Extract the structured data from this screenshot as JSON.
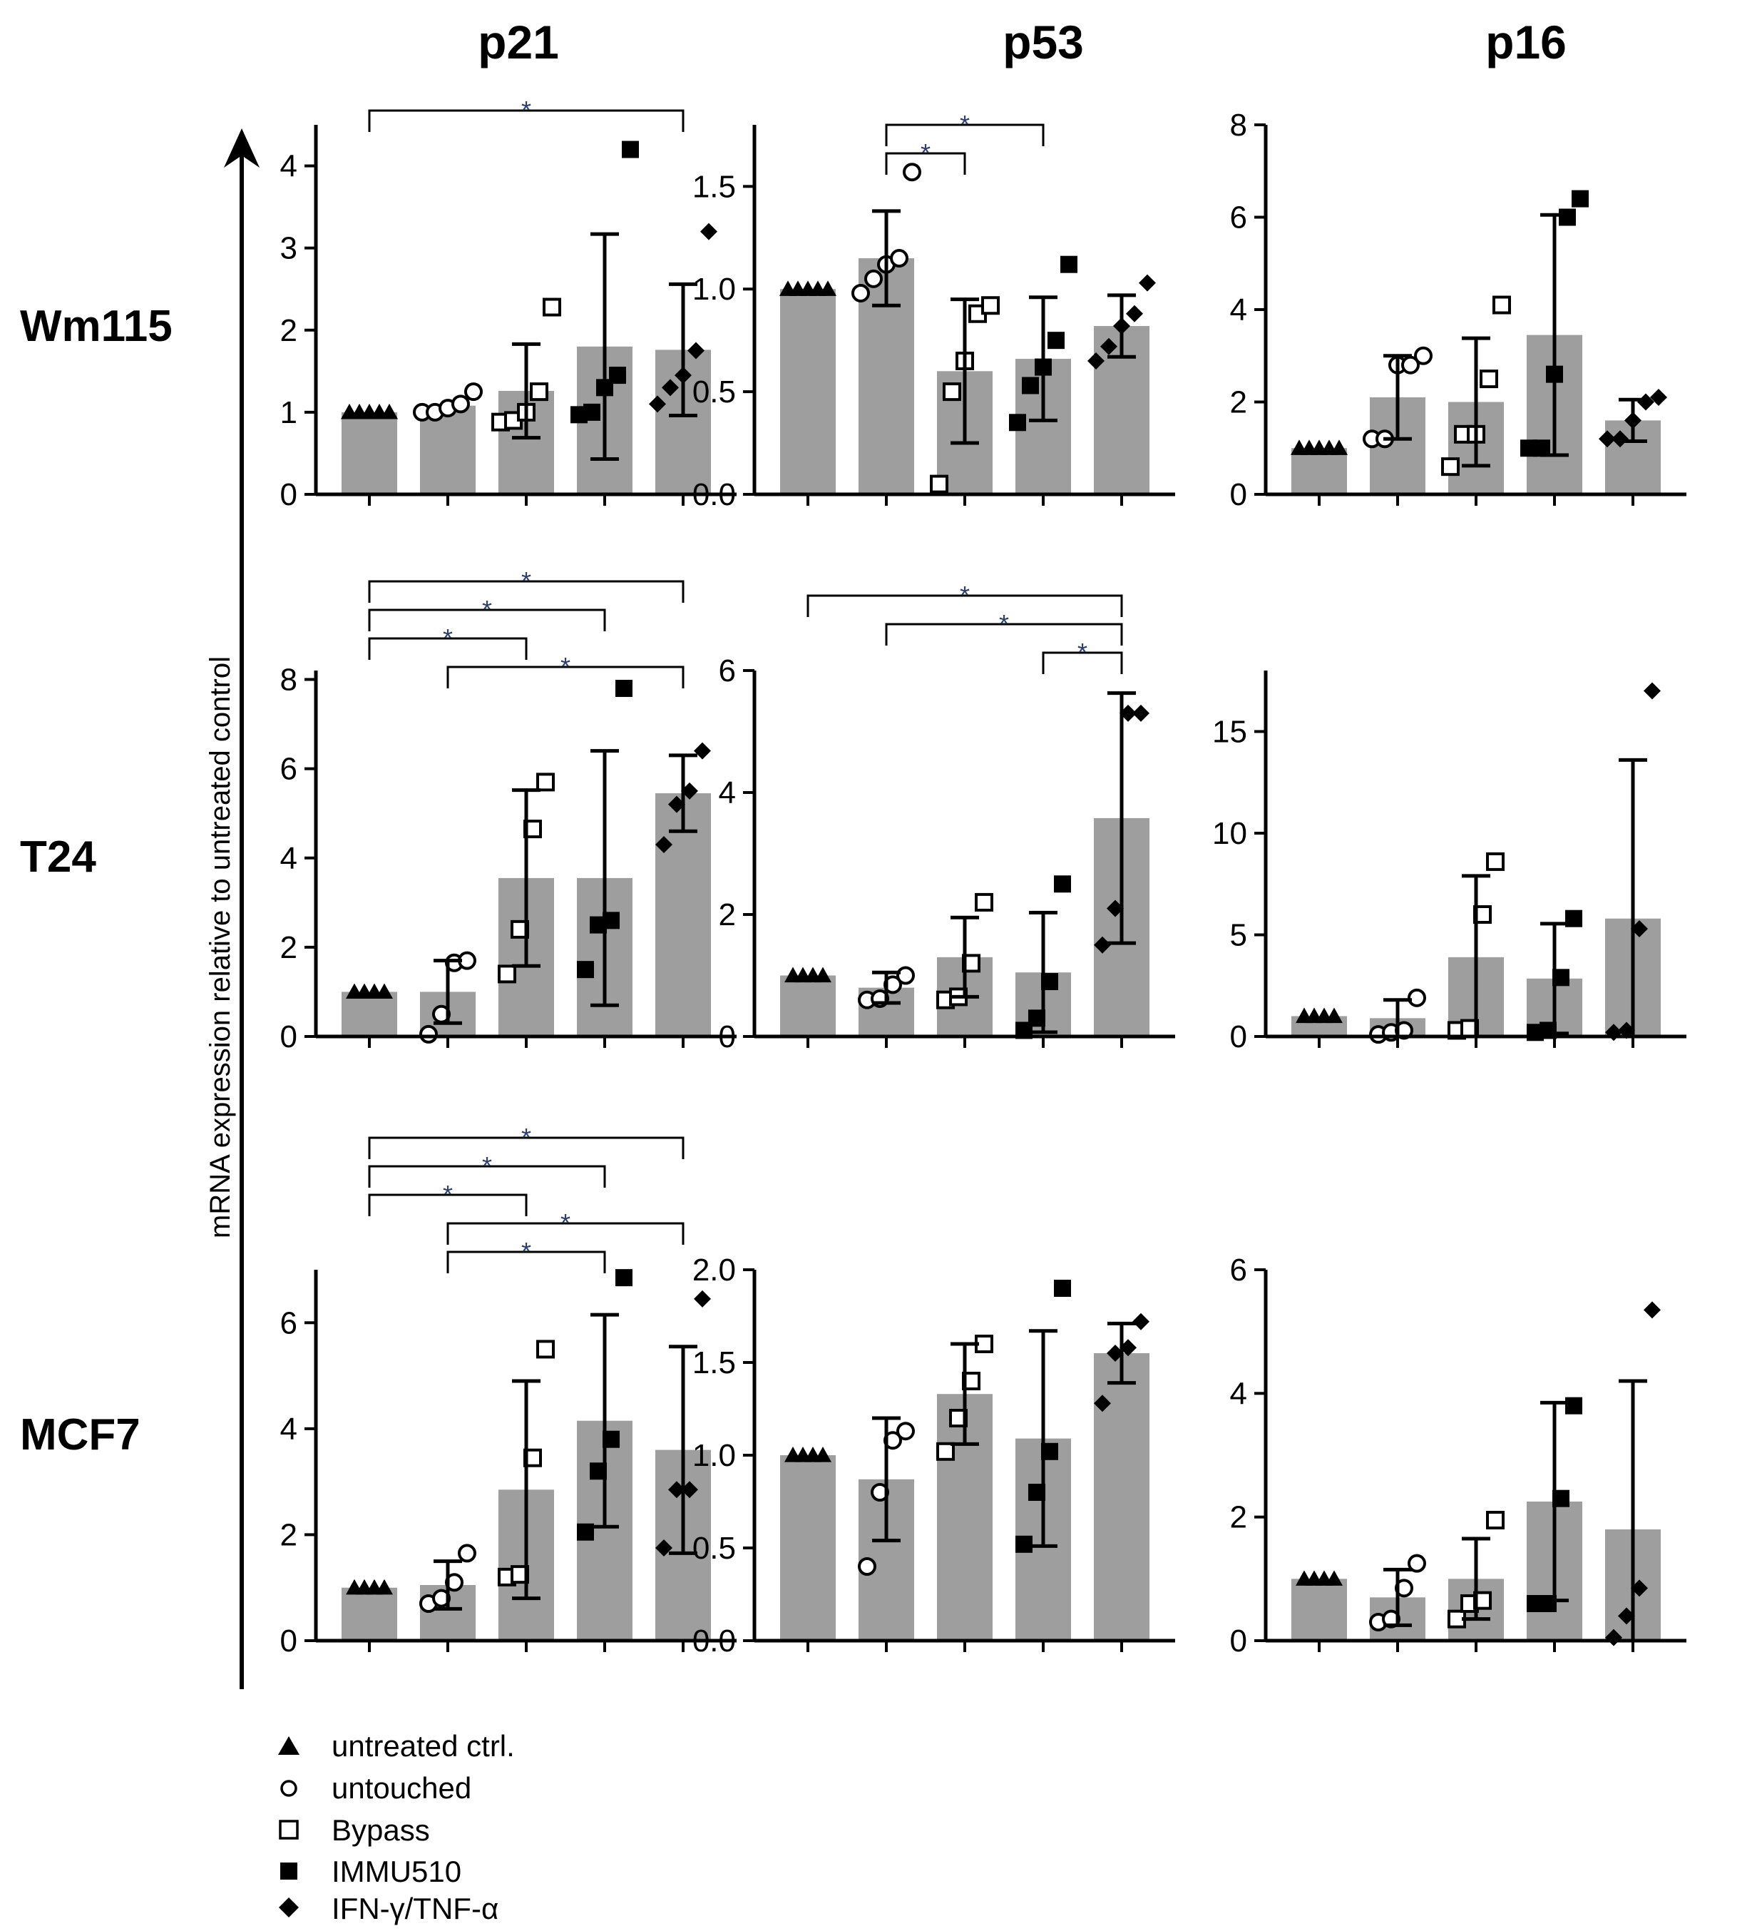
{
  "ylabel": "mRNA expression relative to untreated control",
  "columns": [
    "p21",
    "p53",
    "p16"
  ],
  "rows": [
    "Wm115",
    "T24",
    "MCF7"
  ],
  "legend": [
    {
      "marker": "triangle",
      "label": "untreated ctrl."
    },
    {
      "marker": "circle-open",
      "label": "untouched"
    },
    {
      "marker": "square-open",
      "label": "Bypass"
    },
    {
      "marker": "square-filled",
      "label": "IMMU510"
    },
    {
      "marker": "diamond-filled",
      "label": "IFN-γ/TNF-α"
    }
  ],
  "colors": {
    "bar": "#9e9e9e",
    "star": "#2a3f6e"
  },
  "chart_data": [
    {
      "type": "bar",
      "title": "p21",
      "row": "Wm115",
      "categories": [
        "untreated ctrl.",
        "untouched",
        "Bypass",
        "IMMU510",
        "IFN-γ/TNF-α"
      ],
      "ylim": [
        0,
        4.5
      ],
      "yticks": [
        0,
        1,
        2,
        3,
        4
      ],
      "means": [
        1.0,
        1.08,
        1.26,
        1.8,
        1.76
      ],
      "sd": [
        0,
        0,
        0.57,
        1.37,
        0.8
      ],
      "points": [
        [
          1,
          1,
          1,
          1,
          1
        ],
        [
          1.0,
          1.0,
          1.05,
          1.1,
          1.25
        ],
        [
          0.88,
          0.9,
          1.0,
          1.25,
          2.28
        ],
        [
          0.97,
          1.0,
          1.3,
          1.45,
          4.2
        ],
        [
          1.1,
          1.3,
          1.45,
          1.75,
          3.2
        ]
      ],
      "brackets": [
        {
          "from": 0,
          "to": 4,
          "label": "*"
        }
      ]
    },
    {
      "type": "bar",
      "title": "p53",
      "row": "Wm115",
      "categories": [
        "untreated ctrl.",
        "untouched",
        "Bypass",
        "IMMU510",
        "IFN-γ/TNF-α"
      ],
      "ylim": [
        0,
        1.8
      ],
      "yticks": [
        "0.0",
        "0.5",
        "1.0",
        "1.5"
      ],
      "means": [
        1.0,
        1.15,
        0.6,
        0.66,
        0.82
      ],
      "sd": [
        0,
        0.23,
        0.35,
        0.3,
        0.15
      ],
      "points": [
        [
          1,
          1,
          1,
          1,
          1
        ],
        [
          0.98,
          1.05,
          1.12,
          1.15,
          1.57
        ],
        [
          0.05,
          0.5,
          0.65,
          0.88,
          0.92
        ],
        [
          0.35,
          0.53,
          0.62,
          0.75,
          1.12
        ],
        [
          0.65,
          0.72,
          0.82,
          0.88,
          1.03
        ]
      ],
      "brackets": [
        {
          "from": 1,
          "to": 3,
          "label": "*"
        },
        {
          "from": 1,
          "to": 2,
          "label": "*"
        }
      ]
    },
    {
      "type": "bar",
      "title": "p16",
      "row": "Wm115",
      "categories": [
        "untreated ctrl.",
        "untouched",
        "Bypass",
        "IMMU510",
        "IFN-γ/TNF-α"
      ],
      "ylim": [
        0,
        8
      ],
      "yticks": [
        0,
        2,
        4,
        6,
        8
      ],
      "means": [
        1.0,
        2.1,
        2.0,
        3.45,
        1.6
      ],
      "sd": [
        0,
        0.9,
        1.38,
        2.6,
        0.45
      ],
      "points": [
        [
          1,
          1,
          1,
          1,
          1
        ],
        [
          1.2,
          1.2,
          2.8,
          2.8,
          3.0
        ],
        [
          0.6,
          1.3,
          1.3,
          2.5,
          4.1
        ],
        [
          1.0,
          1.0,
          2.6,
          6.0,
          6.4
        ],
        [
          1.2,
          1.2,
          1.6,
          2.0,
          2.1
        ]
      ],
      "brackets": []
    },
    {
      "type": "bar",
      "title": "p21",
      "row": "T24",
      "categories": [
        "untreated ctrl.",
        "untouched",
        "Bypass",
        "IMMU510",
        "IFN-γ/TNF-α"
      ],
      "ylim": [
        0,
        8.2
      ],
      "yticks": [
        0,
        2,
        4,
        6,
        8
      ],
      "means": [
        1.0,
        1.0,
        3.55,
        3.55,
        5.45
      ],
      "sd": [
        0,
        0.7,
        1.97,
        2.85,
        0.85
      ],
      "points": [
        [
          1,
          1,
          1,
          1
        ],
        [
          0.05,
          0.5,
          1.65,
          1.7
        ],
        [
          1.4,
          2.4,
          4.65,
          5.7
        ],
        [
          1.5,
          2.5,
          2.6,
          7.8
        ],
        [
          4.3,
          5.2,
          5.5,
          6.4
        ]
      ],
      "brackets": [
        {
          "from": 0,
          "to": 4,
          "label": "*"
        },
        {
          "from": 0,
          "to": 3,
          "label": "*"
        },
        {
          "from": 0,
          "to": 2,
          "label": "*"
        },
        {
          "from": 1,
          "to": 4,
          "label": "*"
        }
      ]
    },
    {
      "type": "bar",
      "title": "p53",
      "row": "T24",
      "categories": [
        "untreated ctrl.",
        "untouched",
        "Bypass",
        "IMMU510",
        "IFN-γ/TNF-α"
      ],
      "ylim": [
        0,
        6.0
      ],
      "yticks": [
        0,
        2,
        4,
        6
      ],
      "means": [
        1.0,
        0.8,
        1.3,
        1.05,
        3.58
      ],
      "sd": [
        0,
        0.25,
        0.65,
        0.98,
        2.05
      ],
      "points": [
        [
          1,
          1,
          1,
          1
        ],
        [
          0.6,
          0.62,
          0.85,
          1.0
        ],
        [
          0.6,
          0.65,
          1.2,
          2.2
        ],
        [
          0.1,
          0.3,
          0.9,
          2.5
        ],
        [
          1.5,
          2.1,
          5.3,
          5.3
        ]
      ],
      "brackets": [
        {
          "from": 0,
          "to": 4,
          "label": "*"
        },
        {
          "from": 1,
          "to": 4,
          "label": "*"
        },
        {
          "from": 3,
          "to": 4,
          "label": "*"
        }
      ]
    },
    {
      "type": "bar",
      "title": "p16",
      "row": "T24",
      "categories": [
        "untreated ctrl.",
        "untouched",
        "Bypass",
        "IMMU510",
        "IFN-γ/TNF-α"
      ],
      "ylim": [
        0,
        18
      ],
      "yticks": [
        0,
        5,
        10,
        15
      ],
      "means": [
        1.0,
        0.9,
        3.9,
        2.85,
        5.8
      ],
      "sd": [
        0,
        0.9,
        4.0,
        2.7,
        7.8
      ],
      "points": [
        [
          1,
          1,
          1,
          1
        ],
        [
          0.1,
          0.2,
          0.3,
          1.9
        ],
        [
          0.3,
          0.4,
          6.0,
          8.6
        ],
        [
          0.2,
          0.3,
          2.9,
          5.8
        ],
        [
          0.2,
          0.3,
          5.3,
          17.0
        ]
      ],
      "brackets": []
    },
    {
      "type": "bar",
      "title": "p21",
      "row": "MCF7",
      "categories": [
        "untreated ctrl.",
        "untouched",
        "Bypass",
        "IMMU510",
        "IFN-γ/TNF-α"
      ],
      "ylim": [
        0,
        7.0
      ],
      "yticks": [
        0,
        2,
        4,
        6
      ],
      "means": [
        1.0,
        1.05,
        2.85,
        4.15,
        3.6
      ],
      "sd": [
        0,
        0.45,
        2.05,
        2.0,
        1.95
      ],
      "points": [
        [
          1,
          1,
          1,
          1
        ],
        [
          0.7,
          0.8,
          1.1,
          1.65
        ],
        [
          1.2,
          1.25,
          3.45,
          5.5
        ],
        [
          2.05,
          3.2,
          3.8,
          6.85
        ],
        [
          1.75,
          2.85,
          2.85,
          6.45
        ]
      ],
      "brackets": [
        {
          "from": 0,
          "to": 4,
          "label": "*"
        },
        {
          "from": 0,
          "to": 3,
          "label": "*"
        },
        {
          "from": 0,
          "to": 2,
          "label": "*"
        },
        {
          "from": 1,
          "to": 4,
          "label": "*"
        },
        {
          "from": 1,
          "to": 3,
          "label": "*"
        }
      ]
    },
    {
      "type": "bar",
      "title": "p53",
      "row": "MCF7",
      "categories": [
        "untreated ctrl.",
        "untouched",
        "Bypass",
        "IMMU510",
        "IFN-γ/TNF-α"
      ],
      "ylim": [
        0,
        2.0
      ],
      "yticks": [
        "0.0",
        "0.5",
        "1.0",
        "1.5",
        "2.0"
      ],
      "means": [
        1.0,
        0.87,
        1.33,
        1.09,
        1.55
      ],
      "sd": [
        0,
        0.33,
        0.27,
        0.58,
        0.16
      ],
      "points": [
        [
          1,
          1,
          1,
          1
        ],
        [
          0.4,
          0.8,
          1.08,
          1.13
        ],
        [
          1.02,
          1.2,
          1.4,
          1.6
        ],
        [
          0.52,
          0.8,
          1.02,
          1.9
        ],
        [
          1.28,
          1.55,
          1.58,
          1.72
        ]
      ],
      "brackets": []
    },
    {
      "type": "bar",
      "title": "p16",
      "row": "MCF7",
      "categories": [
        "untreated ctrl.",
        "untouched",
        "Bypass",
        "IMMU510",
        "IFN-γ/TNF-α"
      ],
      "ylim": [
        0,
        6
      ],
      "yticks": [
        0,
        2,
        4,
        6
      ],
      "means": [
        1.0,
        0.7,
        1.0,
        2.25,
        1.8
      ],
      "sd": [
        0,
        0.45,
        0.65,
        1.6,
        2.4
      ],
      "points": [
        [
          1,
          1,
          1,
          1
        ],
        [
          0.3,
          0.35,
          0.85,
          1.25
        ],
        [
          0.35,
          0.6,
          0.65,
          1.95
        ],
        [
          0.6,
          0.6,
          2.3,
          3.8
        ],
        [
          0.05,
          0.4,
          0.85,
          5.35
        ]
      ],
      "brackets": []
    }
  ]
}
